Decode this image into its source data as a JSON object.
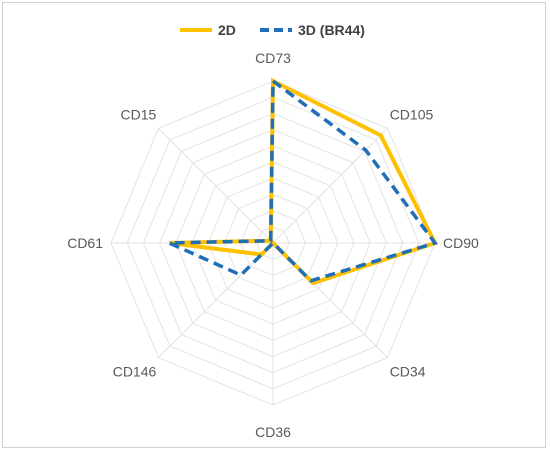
{
  "chart_data": {
    "type": "radar",
    "title": "",
    "categories": [
      "CD73",
      "CD105",
      "CD90",
      "CD34",
      "CD36",
      "CD146",
      "CD61",
      "CD15"
    ],
    "rmax": 100,
    "grid_levels": 10,
    "grid": true,
    "legend_position": "top",
    "series": [
      {
        "name": "2D",
        "values": [
          100,
          94,
          100,
          35,
          0,
          10,
          64,
          2
        ],
        "color": "#FFC000",
        "dash": "solid"
      },
      {
        "name": "3D (BR44)",
        "values": [
          100,
          81,
          100,
          33,
          0,
          28,
          64,
          2
        ],
        "color": "#1F6EB8",
        "dash": "dashed"
      }
    ]
  }
}
